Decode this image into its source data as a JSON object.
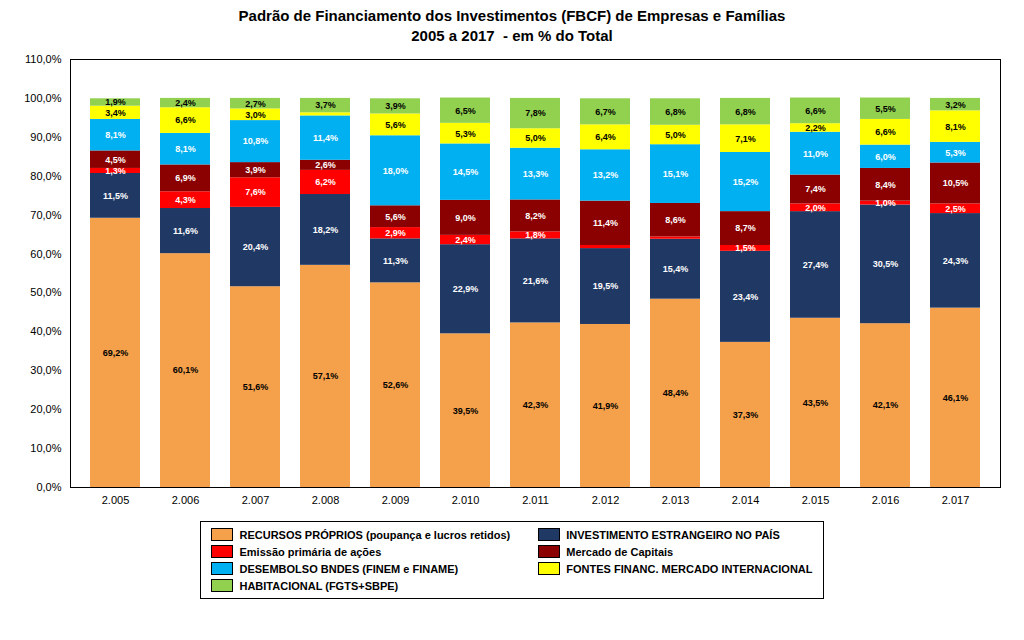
{
  "chart_data": {
    "type": "bar",
    "stacked": true,
    "data_labels": true,
    "grid": false,
    "legend": "bottom",
    "title": "Padrão de Financiamento dos Investimentos (FBCF) de Empresas e Famílias\n2005 a 2017  - em % do Total",
    "categories": [
      "2.005",
      "2.006",
      "2.007",
      "2.008",
      "2.009",
      "2.010",
      "2.011",
      "2.012",
      "2.013",
      "2.014",
      "2.015",
      "2.016",
      "2.017"
    ],
    "series": [
      {
        "name": "RECURSOS PRÓPRIOS (poupança e lucros retidos)",
        "color": "#F5A04B",
        "values": [
          69.2,
          60.1,
          51.6,
          57.1,
          52.6,
          39.5,
          42.3,
          41.9,
          48.4,
          37.3,
          43.5,
          42.1,
          46.1
        ],
        "value_labels": [
          "69,2%",
          "60,1%",
          "51,6%",
          "57,1%",
          "52,6%",
          "39,5%",
          "42,3%",
          "41,9%",
          "48,4%",
          "37,3%",
          "43,5%",
          "42,1%",
          "46,1%"
        ]
      },
      {
        "name": "INVESTIMENTO ESTRANGEIRO NO PAÍS",
        "color": "#1F3864",
        "values": [
          11.5,
          11.6,
          20.4,
          18.2,
          11.3,
          22.9,
          21.6,
          19.5,
          15.4,
          23.4,
          27.4,
          30.5,
          24.3
        ],
        "value_labels": [
          "11,5%",
          "11,6%",
          "20,4%",
          "18,2%",
          "11,3%",
          "22,9%",
          "21,6%",
          "19,5%",
          "15,4%",
          "23,4%",
          "27,4%",
          "30,5%",
          "24,3%"
        ]
      },
      {
        "name": "Emissão primária de ações",
        "color": "#FF0000",
        "values": [
          1.3,
          4.3,
          7.6,
          6.2,
          2.9,
          2.4,
          1.8,
          0.8,
          0.6,
          1.5,
          2.0,
          1.0,
          2.5
        ],
        "value_labels": [
          "1,3%",
          "4,3%",
          "7,6%",
          "6,2%",
          "2,9%",
          "2,4%",
          "1,8%",
          null,
          null,
          "1,5%",
          "2,0%",
          "1,0%",
          "2,5%"
        ]
      },
      {
        "name": "Mercado de Capitais",
        "color": "#8B0000",
        "values": [
          4.5,
          6.9,
          3.9,
          2.6,
          5.6,
          9.0,
          8.2,
          11.4,
          8.6,
          8.7,
          7.4,
          8.4,
          10.5
        ],
        "value_labels": [
          "4,5%",
          "6,9%",
          "3,9%",
          "2,6%",
          "5,6%",
          "9,0%",
          "8,2%",
          "11,4%",
          "8,6%",
          "8,7%",
          "7,4%",
          "8,4%",
          "10,5%"
        ]
      },
      {
        "name": "DESEMBOLSO BNDES (FINEM e FINAME)",
        "color": "#00B0F0",
        "values": [
          8.1,
          8.1,
          10.8,
          11.4,
          18.0,
          14.5,
          13.3,
          13.2,
          15.1,
          15.2,
          11.0,
          6.0,
          5.3
        ],
        "value_labels": [
          "8,1%",
          "8,1%",
          "10,8%",
          "11,4%",
          "18,0%",
          "14,5%",
          "13,3%",
          "13,2%",
          "15,1%",
          "15,2%",
          "11,0%",
          "6,0%",
          "5,3%"
        ]
      },
      {
        "name": "FONTES FINANC. MERCADO INTERNACIONAL",
        "color": "#FFFF00",
        "values": [
          3.4,
          6.6,
          3.0,
          0.8,
          5.6,
          5.3,
          5.0,
          6.4,
          5.0,
          7.1,
          2.2,
          6.6,
          8.1
        ],
        "value_labels": [
          "3,4%",
          "6,6%",
          "3,0%",
          null,
          "5,6%",
          "5,3%",
          "5,0%",
          "6,4%",
          "5,0%",
          "7,1%",
          "2,2%",
          "6,6%",
          "8,1%"
        ]
      },
      {
        "name": "HABITACIONAL (FGTS+SBPE)",
        "color": "#92D050",
        "values": [
          1.9,
          2.4,
          2.7,
          3.7,
          3.9,
          6.5,
          7.8,
          6.7,
          6.8,
          6.8,
          6.6,
          5.5,
          3.2
        ],
        "value_labels": [
          "1,9%",
          "2,4%",
          "2,7%",
          "3,7%",
          "3,9%",
          "6,5%",
          "7,8%",
          "6,7%",
          "6,8%",
          "6,8%",
          "6,6%",
          "5,5%",
          "3,2%"
        ]
      }
    ],
    "ylim": [
      0,
      110
    ],
    "yticks": [
      {
        "value": 0,
        "label": "0,0%"
      },
      {
        "value": 10,
        "label": "10,0%"
      },
      {
        "value": 20,
        "label": "20,0%"
      },
      {
        "value": 30,
        "label": "30,0%"
      },
      {
        "value": 40,
        "label": "40,0%"
      },
      {
        "value": 50,
        "label": "50,0%"
      },
      {
        "value": 60,
        "label": "60,0%"
      },
      {
        "value": 70,
        "label": "70,0%"
      },
      {
        "value": 80,
        "label": "80,0%"
      },
      {
        "value": 90,
        "label": "90,0%"
      },
      {
        "value": 100,
        "label": "100,0%"
      },
      {
        "value": 110,
        "label": "110,0%"
      }
    ]
  }
}
